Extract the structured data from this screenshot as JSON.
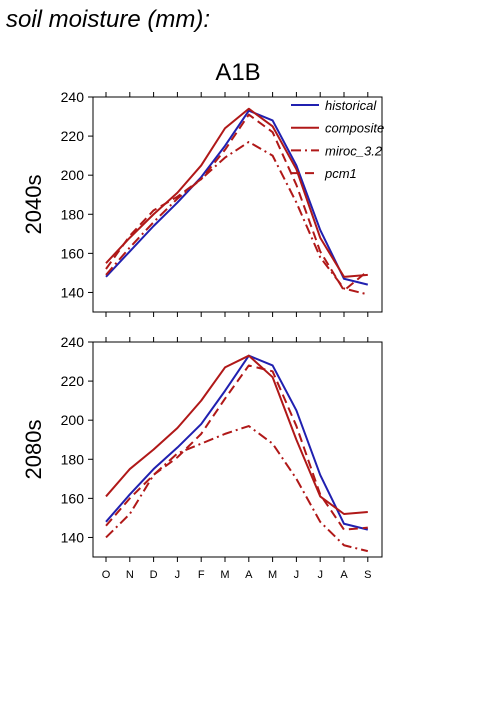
{
  "header": "soil moisture (mm):",
  "chart_data": {
    "type": "line",
    "title": "A1B",
    "x": [
      "O",
      "N",
      "D",
      "J",
      "F",
      "M",
      "A",
      "M",
      "J",
      "J",
      "A",
      "S"
    ],
    "ylim": [
      130,
      240
    ],
    "yticks": [
      140,
      160,
      180,
      200,
      220,
      240
    ],
    "legend": {
      "placement": "top-right",
      "entries": [
        "historical",
        "composite",
        "miroc_3.2",
        "pcm1"
      ]
    },
    "styles": {
      "historical": {
        "color": "#2020b0",
        "dash": "solid"
      },
      "composite": {
        "color": "#b01818",
        "dash": "solid"
      },
      "miroc_3.2": {
        "color": "#b01818",
        "dash": "dashdot"
      },
      "pcm1": {
        "color": "#b01818",
        "dash": "dashed"
      }
    },
    "panels": [
      {
        "row_label": "2040s",
        "series": [
          {
            "name": "historical",
            "values": [
              148,
              161,
              174,
              186,
              199,
              215,
              233,
              228,
              205,
              172,
              147,
              144
            ]
          },
          {
            "name": "composite",
            "values": [
              155,
              168,
              180,
              191,
              205,
              224,
              234,
              225,
              203,
              168,
              148,
              149
            ]
          },
          {
            "name": "miroc_3.2",
            "values": [
              149,
              163,
              176,
              188,
              198,
              209,
              217,
              210,
              186,
              158,
              142,
              139
            ]
          },
          {
            "name": "pcm1",
            "values": [
              152,
              169,
              182,
              189,
              198,
              213,
              231,
              222,
              195,
              161,
              141,
              151
            ]
          }
        ]
      },
      {
        "row_label": "2080s",
        "series": [
          {
            "name": "historical",
            "values": [
              148,
              162,
              175,
              186,
              198,
              215,
              233,
              228,
              205,
              172,
              147,
              144
            ]
          },
          {
            "name": "composite",
            "values": [
              161,
              175,
              185,
              196,
              210,
              227,
              233,
              222,
              190,
              161,
              152,
              153
            ]
          },
          {
            "name": "miroc_3.2",
            "values": [
              140,
              152,
              172,
              183,
              188,
              193,
              197,
              188,
              170,
              148,
              136,
              133
            ]
          },
          {
            "name": "pcm1",
            "values": [
              146,
              160,
              172,
              181,
              193,
              211,
              228,
              225,
              197,
              162,
              144,
              145
            ]
          }
        ]
      }
    ]
  }
}
